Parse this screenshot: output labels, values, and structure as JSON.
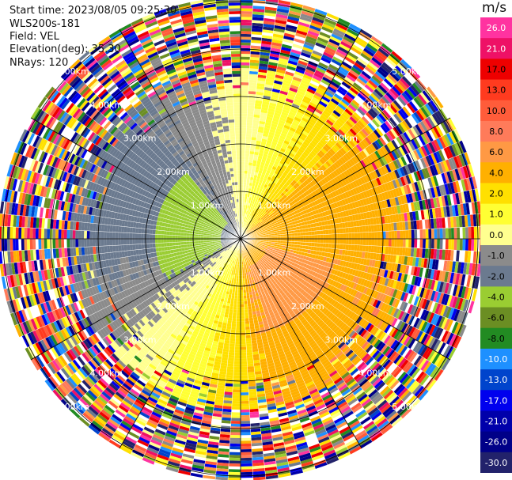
{
  "info": {
    "start_time": "Start time: 2023/08/05 09:25:30",
    "instrument": "WLS200s-181",
    "field": "Field: VEL",
    "elevation": "Elevation(deg): 35.30",
    "nrays": "NRays: 120"
  },
  "colorbar": {
    "unit": "m/s",
    "ticks": [
      "26.0",
      "21.0",
      "17.0",
      "13.0",
      "10.0",
      "8.0",
      "6.0",
      "4.0",
      "2.0",
      "1.0",
      "0.0",
      "-1.0",
      "-2.0",
      "-4.0",
      "-6.0",
      "-8.0",
      "-10.0",
      "-13.0",
      "-17.0",
      "-21.0",
      "-26.0",
      "-30.0"
    ],
    "colors": [
      "#ff33a0",
      "#ee1166",
      "#ee0000",
      "#ff3b1f",
      "#ff5c3a",
      "#ff7b5a",
      "#ff9944",
      "#ffb000",
      "#ffe000",
      "#ffff33",
      "#ffff90",
      "#8b8b8b",
      "#6b7a8f",
      "#9acd32",
      "#6b8e23",
      "#228b22",
      "#1e90ff",
      "#0044cc",
      "#0000ee",
      "#0000aa",
      "#000088",
      "#22226b"
    ]
  },
  "chart_data": {
    "type": "heatmap",
    "subtype": "polar PPI (plan position indicator)",
    "field": "VEL",
    "units": "m/s",
    "nrays": 120,
    "elevation_deg": 35.3,
    "range_rings_km": [
      1.0,
      2.0,
      3.0,
      4.0,
      5.0
    ],
    "ring_labels": [
      "1.00km",
      "2.00km",
      "3.00km",
      "4.00km",
      "5.00km"
    ],
    "max_range_km": 5.1,
    "color_scale": {
      "min": -30.0,
      "max": 26.0
    },
    "radial_velocity_pattern": {
      "green_negative_sector_deg": [
        200,
        10
      ],
      "yellow_positive_sector_deg": [
        20,
        170
      ],
      "orange_core_center_deg": 135,
      "noise_beyond_km": 3.6
    }
  }
}
